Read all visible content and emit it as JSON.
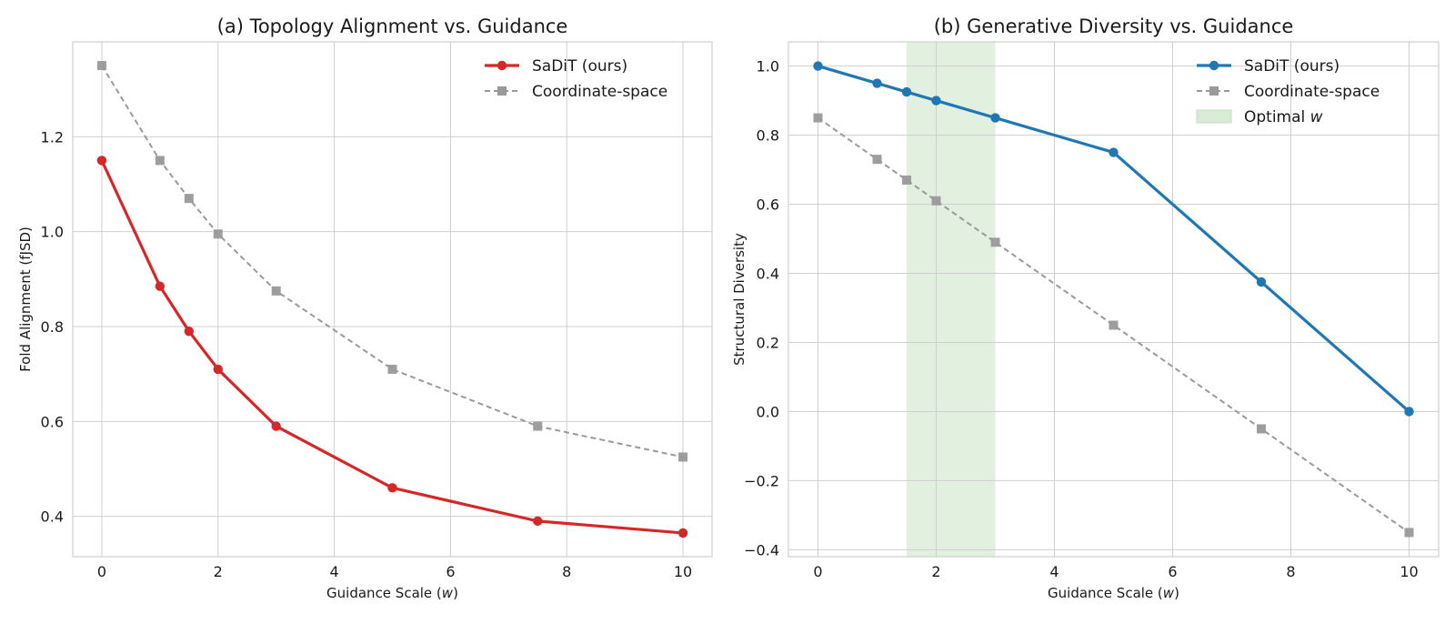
{
  "chart_data": [
    {
      "type": "line",
      "title": "(a) Topology Alignment vs. Guidance",
      "xlabel": "Guidance Scale (",
      "xlabel_var": "w",
      "xlabel_end": ")",
      "ylabel": "Fold Alignment (fJSD)",
      "xlim": [
        -0.5,
        10.5
      ],
      "ylim": [
        0.315,
        1.4
      ],
      "xticks": [
        0,
        2,
        4,
        6,
        8,
        10
      ],
      "yticks": [
        0.4,
        0.6,
        0.8,
        1.0,
        1.2
      ],
      "ytick_labels": [
        "0.4",
        "0.6",
        "0.8",
        "1.0",
        "1.2"
      ],
      "grid": true,
      "legend_position": "top-right",
      "series": [
        {
          "name": "SaDiT (ours)",
          "color": "#d62728",
          "marker": "circle",
          "style": "solid",
          "x": [
            0,
            1,
            1.5,
            2,
            3,
            5,
            7.5,
            10
          ],
          "values": [
            1.15,
            0.885,
            0.79,
            0.71,
            0.59,
            0.46,
            0.39,
            0.365
          ]
        },
        {
          "name": "Coordinate-space",
          "color": "#999999",
          "marker": "square",
          "style": "dashed",
          "x": [
            0,
            1,
            1.5,
            2,
            3,
            5,
            7.5,
            10
          ],
          "values": [
            1.35,
            1.15,
            1.07,
            0.995,
            0.875,
            0.71,
            0.59,
            0.525
          ]
        }
      ]
    },
    {
      "type": "line",
      "title": "(b) Generative Diversity vs. Guidance",
      "xlabel": "Guidance Scale (",
      "xlabel_var": "w",
      "xlabel_end": ")",
      "ylabel": "Structural Diversity",
      "xlim": [
        -0.5,
        10.5
      ],
      "ylim": [
        -0.42,
        1.07
      ],
      "xticks": [
        0,
        2,
        4,
        6,
        8,
        10
      ],
      "yticks": [
        -0.4,
        -0.2,
        0.0,
        0.2,
        0.4,
        0.6,
        0.8,
        1.0
      ],
      "ytick_labels": [
        "−0.4",
        "−0.2",
        "0.0",
        "0.2",
        "0.4",
        "0.6",
        "0.8",
        "1.0"
      ],
      "grid": true,
      "legend_position": "top-right",
      "shaded_region": {
        "name": "Optimal ",
        "name_var": "w",
        "x_range": [
          1.5,
          3.0
        ],
        "color": "#d8ebd5"
      },
      "series": [
        {
          "name": "SaDiT (ours)",
          "color": "#1f77b4",
          "marker": "circle",
          "style": "solid",
          "x": [
            0,
            1,
            1.5,
            2,
            3,
            5,
            7.5,
            10
          ],
          "values": [
            1.0,
            0.95,
            0.925,
            0.9,
            0.85,
            0.75,
            0.375,
            0.0
          ]
        },
        {
          "name": "Coordinate-space",
          "color": "#999999",
          "marker": "square",
          "style": "dashed",
          "x": [
            0,
            1,
            1.5,
            2,
            3,
            5,
            7.5,
            10
          ],
          "values": [
            0.85,
            0.73,
            0.67,
            0.61,
            0.49,
            0.25,
            -0.05,
            -0.35
          ]
        }
      ]
    }
  ]
}
